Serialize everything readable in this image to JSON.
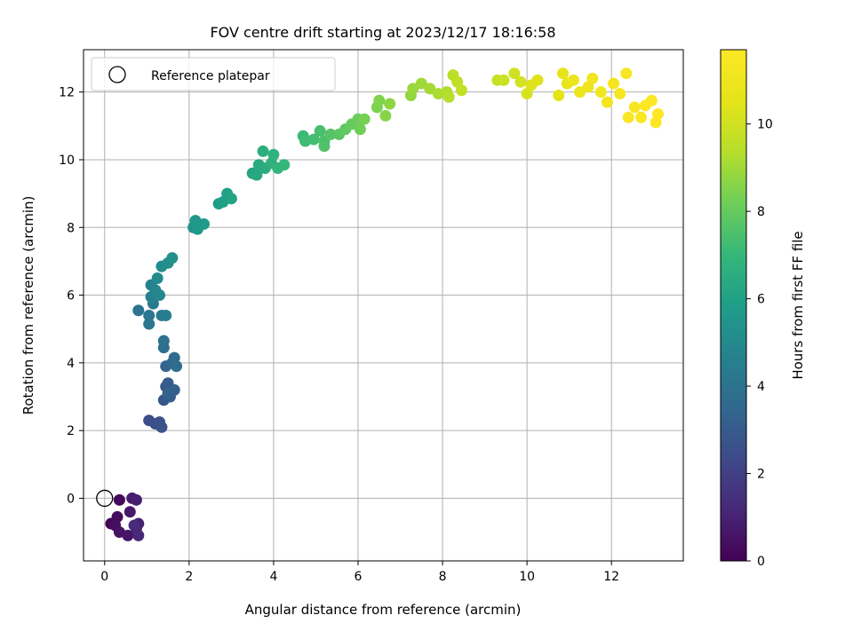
{
  "chart_data": {
    "type": "scatter",
    "title": "FOV centre drift starting at 2023/12/17 18:16:58",
    "xlabel": "Angular distance from reference (arcmin)",
    "ylabel": "Rotation from reference (arcmin)",
    "xlim": [
      -0.5,
      13.7
    ],
    "ylim": [
      -1.85,
      13.25
    ],
    "xticks": [
      0,
      2,
      4,
      6,
      8,
      10,
      12
    ],
    "yticks": [
      0,
      2,
      4,
      6,
      8,
      10,
      12
    ],
    "grid": true,
    "legend": {
      "placement": "upper-left",
      "entries": [
        "Reference platepar"
      ]
    },
    "reference_point": {
      "x": 0,
      "y": 0,
      "label": "Reference platepar"
    },
    "colorbar": {
      "label": "Hours from first FF file",
      "colormap": "viridis",
      "range": [
        0,
        11.7
      ],
      "ticks": [
        0,
        2,
        4,
        6,
        8,
        10
      ]
    },
    "series": [
      {
        "points": [
          [
            0.15,
            -0.75,
            0.1
          ],
          [
            0.35,
            -0.05,
            0.2
          ],
          [
            0.3,
            -0.55,
            0.3
          ],
          [
            0.25,
            -0.8,
            0.4
          ],
          [
            0.35,
            -1.0,
            0.5
          ],
          [
            0.55,
            -1.1,
            0.6
          ],
          [
            0.6,
            -0.4,
            0.7
          ],
          [
            0.65,
            0.0,
            0.8
          ],
          [
            0.75,
            -0.05,
            0.9
          ],
          [
            0.8,
            -0.75,
            1.0
          ],
          [
            0.75,
            -0.9,
            1.1
          ],
          [
            0.8,
            -1.1,
            1.2
          ],
          [
            0.7,
            -0.8,
            1.3
          ],
          [
            1.05,
            2.3,
            2.4
          ],
          [
            1.2,
            2.2,
            2.5
          ],
          [
            1.3,
            2.25,
            2.6
          ],
          [
            1.35,
            2.1,
            2.7
          ],
          [
            1.4,
            2.9,
            2.8
          ],
          [
            1.45,
            3.3,
            2.9
          ],
          [
            1.5,
            3.4,
            3.0
          ],
          [
            1.55,
            3.0,
            3.1
          ],
          [
            1.65,
            3.2,
            3.2
          ],
          [
            1.5,
            3.1,
            3.3
          ],
          [
            1.45,
            3.9,
            3.4
          ],
          [
            1.6,
            4.0,
            3.5
          ],
          [
            1.65,
            4.15,
            3.6
          ],
          [
            1.7,
            3.9,
            3.7
          ],
          [
            1.4,
            4.45,
            3.8
          ],
          [
            1.4,
            4.65,
            3.9
          ],
          [
            0.8,
            5.55,
            4.0
          ],
          [
            1.05,
            5.4,
            4.1
          ],
          [
            1.05,
            5.15,
            4.2
          ],
          [
            1.15,
            5.75,
            4.3
          ],
          [
            1.35,
            5.4,
            4.4
          ],
          [
            1.45,
            5.4,
            4.5
          ],
          [
            1.1,
            5.95,
            4.6
          ],
          [
            1.1,
            6.3,
            4.7
          ],
          [
            1.2,
            6.15,
            4.8
          ],
          [
            1.3,
            6.0,
            4.9
          ],
          [
            1.25,
            6.5,
            5.0
          ],
          [
            1.35,
            6.85,
            5.1
          ],
          [
            1.5,
            6.95,
            5.2
          ],
          [
            1.6,
            7.1,
            5.3
          ],
          [
            2.1,
            8.0,
            5.4
          ],
          [
            2.2,
            7.95,
            5.5
          ],
          [
            2.15,
            8.2,
            5.6
          ],
          [
            2.35,
            8.1,
            5.7
          ],
          [
            2.7,
            8.7,
            5.8
          ],
          [
            2.8,
            8.75,
            5.9
          ],
          [
            2.9,
            9.0,
            6.0
          ],
          [
            3.0,
            8.85,
            6.1
          ],
          [
            3.5,
            9.6,
            6.2
          ],
          [
            3.6,
            9.55,
            6.3
          ],
          [
            3.65,
            9.85,
            6.4
          ],
          [
            3.8,
            9.75,
            6.5
          ],
          [
            3.75,
            10.25,
            6.6
          ],
          [
            3.95,
            9.9,
            6.7
          ],
          [
            4.0,
            10.15,
            6.8
          ],
          [
            4.1,
            9.75,
            6.9
          ],
          [
            4.25,
            9.85,
            7.0
          ],
          [
            4.7,
            10.7,
            7.1
          ],
          [
            4.75,
            10.55,
            7.2
          ],
          [
            4.95,
            10.6,
            7.3
          ],
          [
            5.1,
            10.85,
            7.4
          ],
          [
            5.2,
            10.55,
            7.5
          ],
          [
            5.2,
            10.4,
            7.6
          ],
          [
            5.35,
            10.75,
            7.7
          ],
          [
            5.55,
            10.75,
            7.8
          ],
          [
            5.7,
            10.9,
            7.9
          ],
          [
            5.85,
            11.05,
            8.0
          ],
          [
            6.0,
            11.2,
            8.1
          ],
          [
            6.05,
            10.9,
            8.2
          ],
          [
            6.15,
            11.2,
            8.3
          ],
          [
            6.45,
            11.55,
            8.4
          ],
          [
            6.5,
            11.75,
            8.5
          ],
          [
            6.65,
            11.3,
            8.6
          ],
          [
            6.75,
            11.65,
            8.7
          ],
          [
            7.25,
            11.9,
            8.8
          ],
          [
            7.3,
            12.1,
            8.9
          ],
          [
            7.5,
            12.25,
            9.0
          ],
          [
            7.7,
            12.1,
            9.1
          ],
          [
            7.9,
            11.95,
            9.2
          ],
          [
            8.1,
            12.0,
            9.3
          ],
          [
            8.15,
            11.85,
            9.4
          ],
          [
            8.25,
            12.5,
            9.5
          ],
          [
            8.35,
            12.3,
            9.6
          ],
          [
            8.45,
            12.05,
            9.7
          ],
          [
            9.3,
            12.35,
            9.8
          ],
          [
            9.45,
            12.35,
            9.9
          ],
          [
            9.7,
            12.55,
            10.0
          ],
          [
            9.85,
            12.3,
            10.1
          ],
          [
            10.0,
            11.95,
            10.2
          ],
          [
            10.1,
            12.2,
            10.3
          ],
          [
            10.25,
            12.35,
            10.4
          ],
          [
            10.75,
            11.9,
            10.5
          ],
          [
            10.85,
            12.55,
            10.6
          ],
          [
            10.95,
            12.25,
            10.7
          ],
          [
            11.1,
            12.35,
            10.8
          ],
          [
            11.25,
            12.0,
            10.9
          ],
          [
            11.45,
            12.15,
            11.0
          ],
          [
            11.55,
            12.4,
            11.1
          ],
          [
            11.75,
            12.0,
            11.15
          ],
          [
            11.9,
            11.7,
            11.2
          ],
          [
            12.05,
            12.25,
            11.3
          ],
          [
            12.2,
            11.95,
            11.35
          ],
          [
            12.35,
            12.55,
            11.4
          ],
          [
            12.4,
            11.25,
            11.45
          ],
          [
            12.55,
            11.55,
            11.5
          ],
          [
            12.7,
            11.25,
            11.55
          ],
          [
            12.8,
            11.6,
            11.6
          ],
          [
            12.95,
            11.75,
            11.65
          ],
          [
            13.05,
            11.1,
            11.7
          ],
          [
            13.1,
            11.35,
            11.7
          ]
        ]
      }
    ]
  }
}
